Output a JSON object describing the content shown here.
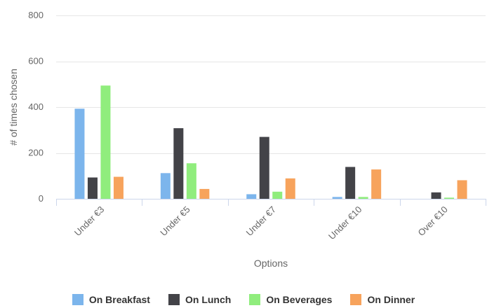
{
  "chart_data": {
    "type": "bar",
    "title": "",
    "xlabel": "Options",
    "ylabel": "# of times chosen",
    "ylim": [
      0,
      800
    ],
    "yticks": [
      0,
      200,
      400,
      600,
      800
    ],
    "grid": true,
    "legend_position": "bottom",
    "categories": [
      "Under €3",
      "Under €5",
      "Under €7",
      "Under €10",
      "Over €10"
    ],
    "series": [
      {
        "name": "On Breakfast",
        "color": "#7cb5ec",
        "values": [
          393,
          112,
          20,
          8,
          0
        ]
      },
      {
        "name": "On Lunch",
        "color": "#434348",
        "values": [
          93,
          308,
          270,
          139,
          28
        ]
      },
      {
        "name": "On Beverages",
        "color": "#90ed7d",
        "values": [
          494,
          155,
          31,
          8,
          5
        ]
      },
      {
        "name": "On Dinner",
        "color": "#f7a35c",
        "values": [
          96,
          43,
          89,
          128,
          81
        ]
      }
    ]
  }
}
